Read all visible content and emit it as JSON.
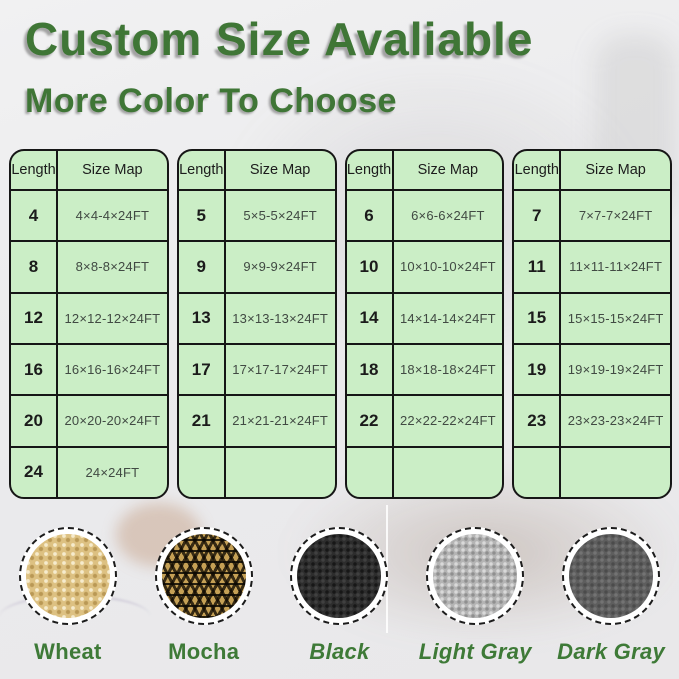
{
  "title": "Custom Size Avaliable",
  "subtitle": "More Color To Choose",
  "accent_color": "#3f7636",
  "table_bg_color": "#cbeec6",
  "table_header": {
    "length": "Length",
    "size_map": "Size Map"
  },
  "tables": [
    {
      "rows": [
        {
          "length": "4",
          "size": "4×4-4×24FT"
        },
        {
          "length": "8",
          "size": "8×8-8×24FT"
        },
        {
          "length": "12",
          "size": "12×12-12×24FT"
        },
        {
          "length": "16",
          "size": "16×16-16×24FT"
        },
        {
          "length": "20",
          "size": "20×20-20×24FT"
        },
        {
          "length": "24",
          "size": "24×24FT"
        }
      ]
    },
    {
      "rows": [
        {
          "length": "5",
          "size": "5×5-5×24FT"
        },
        {
          "length": "9",
          "size": "9×9-9×24FT"
        },
        {
          "length": "13",
          "size": "13×13-13×24FT"
        },
        {
          "length": "17",
          "size": "17×17-17×24FT"
        },
        {
          "length": "21",
          "size": "21×21-21×24FT"
        },
        {
          "length": "",
          "size": ""
        }
      ]
    },
    {
      "rows": [
        {
          "length": "6",
          "size": "6×6-6×24FT"
        },
        {
          "length": "10",
          "size": "10×10-10×24FT"
        },
        {
          "length": "14",
          "size": "14×14-14×24FT"
        },
        {
          "length": "18",
          "size": "18×18-18×24FT"
        },
        {
          "length": "22",
          "size": "22×22-22×24FT"
        },
        {
          "length": "",
          "size": ""
        }
      ]
    },
    {
      "rows": [
        {
          "length": "7",
          "size": "7×7-7×24FT"
        },
        {
          "length": "11",
          "size": "11×11-11×24FT"
        },
        {
          "length": "15",
          "size": "15×15-15×24FT"
        },
        {
          "length": "19",
          "size": "19×19-19×24FT"
        },
        {
          "length": "23",
          "size": "23×23-23×24FT"
        },
        {
          "length": "",
          "size": ""
        }
      ]
    }
  ],
  "swatches": [
    {
      "name": "Wheat",
      "base_color": "#ddc182"
    },
    {
      "name": "Mocha",
      "base_color": "#c5a055"
    },
    {
      "name": "Black",
      "base_color": "#2d2d2d"
    },
    {
      "name": "Light Gray",
      "base_color": "#b4b4b4"
    },
    {
      "name": "Dark Gray",
      "base_color": "#5e5e5e"
    }
  ]
}
